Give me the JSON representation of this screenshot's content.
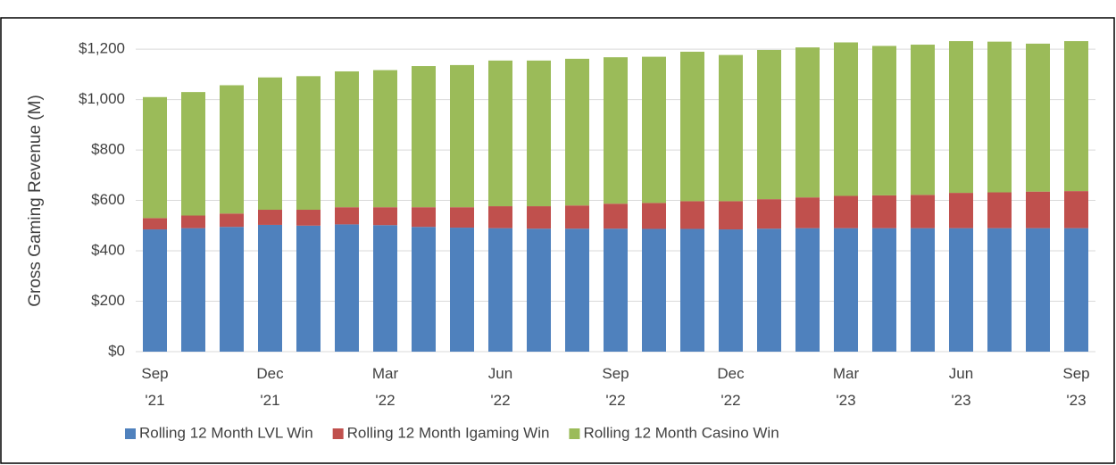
{
  "chart_data": {
    "type": "stacked-bar",
    "y_label": "Gross Gaming Revenue (M)",
    "categories": [
      "Sep '21",
      null,
      null,
      "Dec '21",
      null,
      null,
      "Mar '22",
      null,
      null,
      "Jun '22",
      null,
      null,
      "Sep '22",
      null,
      null,
      "Dec '22",
      null,
      null,
      "Mar '23",
      null,
      null,
      "Jun '23",
      null,
      null,
      "Sep '23"
    ],
    "series": [
      {
        "name": "Rolling 12 Month LVL Win",
        "color": "#4f81bd",
        "values": [
          485,
          490,
          495,
          503,
          500,
          505,
          502,
          495,
          492,
          490,
          488,
          488,
          488,
          487,
          487,
          485,
          488,
          490,
          490,
          490,
          490,
          490,
          490,
          490,
          490
        ]
      },
      {
        "name": "Rolling 12 Month Igaming Win",
        "color": "#c0504d",
        "values": [
          45,
          50,
          53,
          60,
          63,
          68,
          71,
          78,
          81,
          87,
          89,
          92,
          99,
          103,
          110,
          112,
          117,
          122,
          128,
          130,
          132,
          140,
          142,
          145,
          147
        ]
      },
      {
        "name": "Rolling 12 Month Casino Win",
        "color": "#9bbb59",
        "values": [
          480,
          490,
          509,
          525,
          530,
          539,
          544,
          560,
          564,
          578,
          578,
          582,
          581,
          580,
          593,
          580,
          592,
          595,
          609,
          593,
          596,
          602,
          598,
          587,
          595
        ]
      }
    ],
    "ylim": [
      0,
      1250
    ],
    "yticks": [
      {
        "value": 0,
        "label": "$0"
      },
      {
        "value": 200,
        "label": "$200"
      },
      {
        "value": 400,
        "label": "$400"
      },
      {
        "value": 600,
        "label": "$600"
      },
      {
        "value": 800,
        "label": "$800"
      },
      {
        "value": 1000,
        "label": "$1,000"
      },
      {
        "value": 1200,
        "label": "$1,200"
      }
    ],
    "grid": true,
    "legend": "bottom"
  }
}
